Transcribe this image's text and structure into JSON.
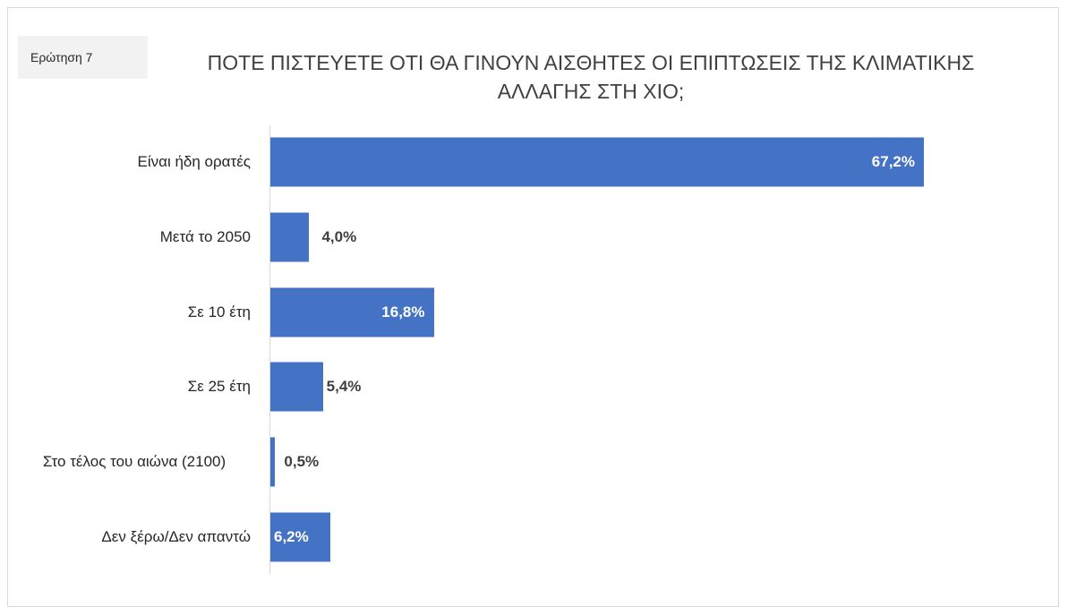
{
  "chart_data": {
    "type": "bar",
    "orientation": "horizontal",
    "question_label": "Ερώτηση 7",
    "title": "ΠΟΤΕ ΠΙΣΤΕΥΕΤΕ ΟΤΙ ΘΑ ΓΙΝΟΥΝ ΑΙΣΘΗΤΕΣ ΟΙ ΕΠΙΠΤΩΣΕΙΣ ΤΗΣ ΚΛΙΜΑΤΙΚΗΣ ΑΛΛΑΓΗΣ ΣΤΗ ΧΙΟ;",
    "categories": [
      "Είναι ήδη ορατές",
      "Μετά το 2050",
      "Σε 10 έτη",
      "Σε 25 έτη",
      "Στο τέλος του αιώνα (2100)",
      "Δεν ξέρω/Δεν απαντώ"
    ],
    "values": [
      67.2,
      4.0,
      16.8,
      5.4,
      0.5,
      6.2
    ],
    "value_labels": [
      "67,2%",
      "4,0%",
      "16,8%",
      "5,4%",
      "0,5%",
      "6,2%"
    ],
    "color": "#4472c4"
  }
}
